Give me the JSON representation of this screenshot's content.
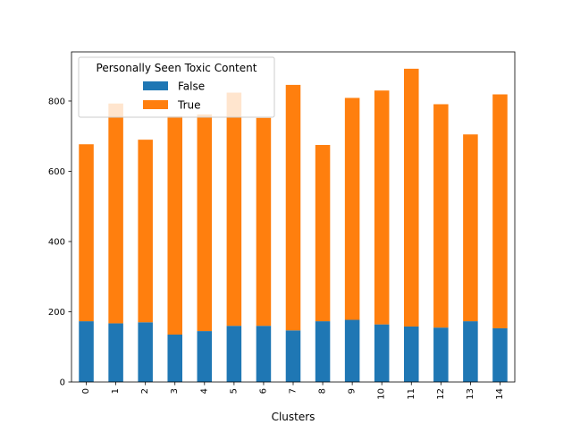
{
  "chart_data": {
    "type": "bar",
    "stacked": true,
    "title": "",
    "xlabel": "Clusters",
    "ylabel": "",
    "categories": [
      "0",
      "1",
      "2",
      "3",
      "4",
      "5",
      "6",
      "7",
      "8",
      "9",
      "10",
      "11",
      "12",
      "13",
      "14"
    ],
    "series": [
      {
        "name": "False",
        "color": "#1f77b4",
        "values": [
          173,
          167,
          170,
          135,
          145,
          160,
          160,
          147,
          173,
          177,
          164,
          158,
          155,
          173,
          153
        ]
      },
      {
        "name": "True",
        "color": "#ff7f0e",
        "values": [
          504,
          626,
          520,
          622,
          617,
          664,
          592,
          699,
          502,
          632,
          666,
          734,
          636,
          532,
          666
        ]
      }
    ],
    "ylim": [
      0,
      940
    ],
    "yticks": [
      "0",
      "200",
      "400",
      "600",
      "800"
    ],
    "grid": false,
    "legend": {
      "title": "Personally Seen Toxic Content",
      "placement": "upper-left"
    }
  }
}
